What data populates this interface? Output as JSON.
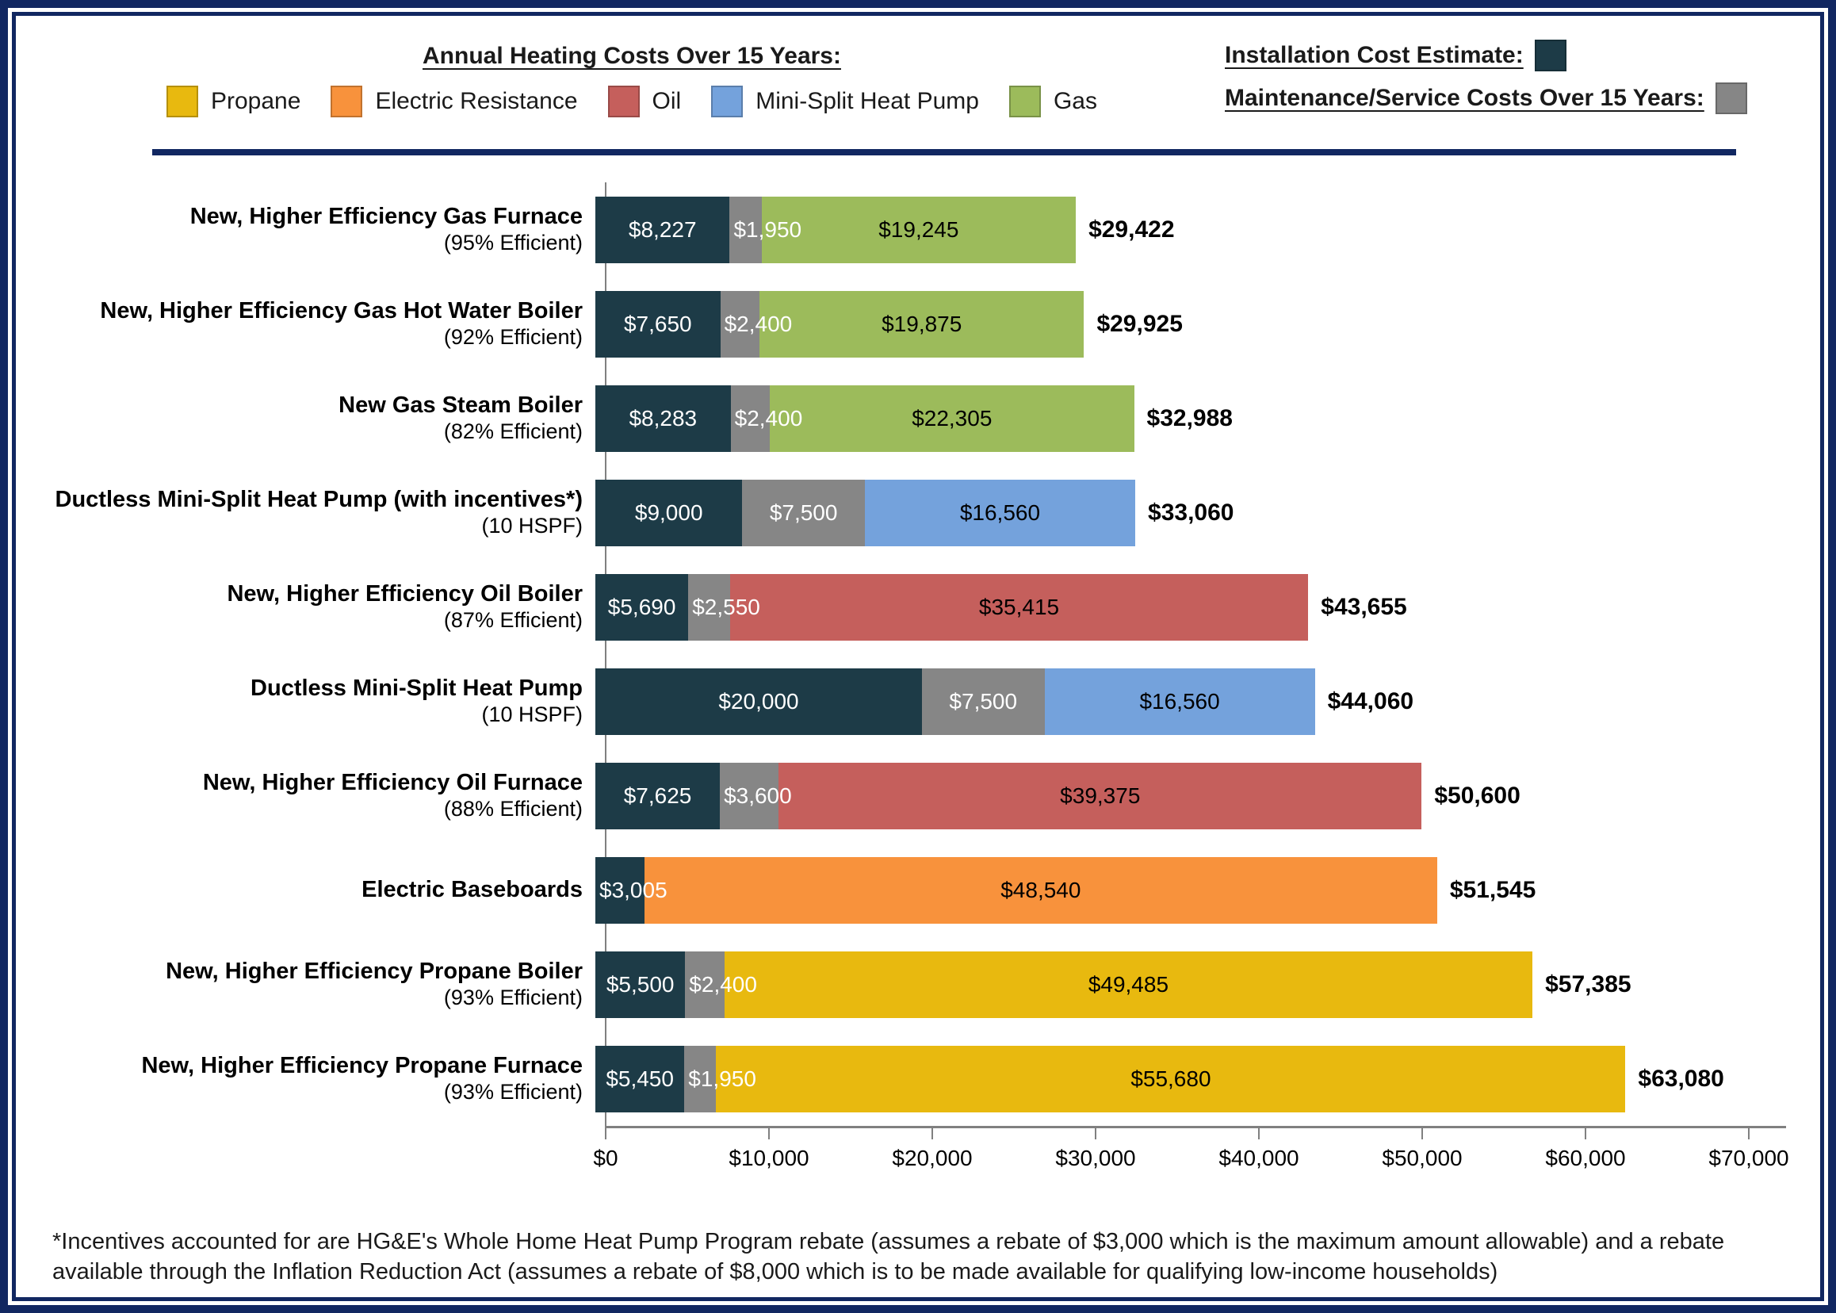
{
  "colors": {
    "frame": "#112761",
    "installation": "#1D3B47",
    "maintenance": "#868686",
    "propane": "#E8B90F",
    "electric": "#F8923C",
    "oil": "#C55F5C",
    "heatpump": "#74A2DC",
    "gas": "#9CBB5B",
    "axis": "#808080"
  },
  "legend": {
    "annual_title": "Annual Heating Costs Over 15 Years:",
    "fuels": [
      {
        "label": "Propane",
        "key": "propane"
      },
      {
        "label": "Electric Resistance",
        "key": "electric"
      },
      {
        "label": "Oil",
        "key": "oil"
      },
      {
        "label": "Mini-Split Heat Pump",
        "key": "heatpump"
      },
      {
        "label": "Gas",
        "key": "gas"
      }
    ],
    "installation_label": "Installation Cost Estimate:",
    "maintenance_label": "Maintenance/Service Costs Over 15 Years:"
  },
  "chart_data": {
    "type": "bar",
    "orientation": "horizontal",
    "stacked": true,
    "xlim": [
      0,
      70000
    ],
    "x_ticks": [
      "$0",
      "$10,000",
      "$20,000",
      "$30,000",
      "$40,000",
      "$50,000",
      "$60,000",
      "$70,000"
    ],
    "segments_order": [
      "installation",
      "maintenance",
      "fuel"
    ],
    "rows": [
      {
        "label": "New, Higher Efficiency Gas Furnace",
        "sublabel": "(95% Efficient)",
        "fuel_key": "gas",
        "installation": 8227,
        "maintenance": 1950,
        "fuel": 19245,
        "total": 29422,
        "display": {
          "installation": "$8,227",
          "maintenance": "$1,950",
          "fuel": "$19,245",
          "total": "$29,422"
        }
      },
      {
        "label": "New, Higher Efficiency Gas Hot Water Boiler",
        "sublabel": "(92% Efficient)",
        "fuel_key": "gas",
        "installation": 7650,
        "maintenance": 2400,
        "fuel": 19875,
        "total": 29925,
        "display": {
          "installation": "$7,650",
          "maintenance": "$2,400",
          "fuel": "$19,875",
          "total": "$29,925"
        }
      },
      {
        "label": "New Gas Steam Boiler",
        "sublabel": "(82% Efficient)",
        "fuel_key": "gas",
        "installation": 8283,
        "maintenance": 2400,
        "fuel": 22305,
        "total": 32988,
        "display": {
          "installation": "$8,283",
          "maintenance": "$2,400",
          "fuel": "$22,305",
          "total": "$32,988"
        }
      },
      {
        "label": "Ductless Mini-Split Heat Pump (with incentives*)",
        "sublabel": "(10 HSPF)",
        "fuel_key": "heatpump",
        "installation": 9000,
        "maintenance": 7500,
        "fuel": 16560,
        "total": 33060,
        "display": {
          "installation": "$9,000",
          "maintenance": "$7,500",
          "fuel": "$16,560",
          "total": "$33,060"
        }
      },
      {
        "label": "New, Higher Efficiency Oil Boiler",
        "sublabel": "(87% Efficient)",
        "fuel_key": "oil",
        "installation": 5690,
        "maintenance": 2550,
        "fuel": 35415,
        "total": 43655,
        "display": {
          "installation": "$5,690",
          "maintenance": "$2,550",
          "fuel": "$35,415",
          "total": "$43,655"
        }
      },
      {
        "label": "Ductless Mini-Split Heat Pump",
        "sublabel": "(10 HSPF)",
        "fuel_key": "heatpump",
        "installation": 20000,
        "maintenance": 7500,
        "fuel": 16560,
        "total": 44060,
        "display": {
          "installation": "$20,000",
          "maintenance": "$7,500",
          "fuel": "$16,560",
          "total": "$44,060"
        }
      },
      {
        "label": "New, Higher Efficiency Oil Furnace",
        "sublabel": "(88% Efficient)",
        "fuel_key": "oil",
        "installation": 7625,
        "maintenance": 3600,
        "fuel": 39375,
        "total": 50600,
        "display": {
          "installation": "$7,625",
          "maintenance": "$3,600",
          "fuel": "$39,375",
          "total": "$50,600"
        }
      },
      {
        "label": "Electric Baseboards",
        "sublabel": "",
        "fuel_key": "electric",
        "installation": 3005,
        "maintenance": 0,
        "fuel": 48540,
        "total": 51545,
        "display": {
          "installation": "$3,005",
          "maintenance": "",
          "fuel": "$48,540",
          "total": "$51,545"
        }
      },
      {
        "label": "New, Higher Efficiency Propane Boiler",
        "sublabel": "(93% Efficient)",
        "fuel_key": "propane",
        "installation": 5500,
        "maintenance": 2400,
        "fuel": 49485,
        "total": 57385,
        "display": {
          "installation": "$5,500",
          "maintenance": "$2,400",
          "fuel": "$49,485",
          "total": "$57,385"
        }
      },
      {
        "label": "New, Higher Efficiency Propane Furnace",
        "sublabel": "(93% Efficient)",
        "fuel_key": "propane",
        "installation": 5450,
        "maintenance": 1950,
        "fuel": 55680,
        "total": 63080,
        "display": {
          "installation": "$5,450",
          "maintenance": "$1,950",
          "fuel": "$55,680",
          "total": "$63,080"
        }
      }
    ]
  },
  "footnote": {
    "text": "*Incentives accounted for are HG&E's Whole Home Heat Pump Program rebate (assumes a rebate of $3,000 which is the maximum amount allowable) and a rebate available through the Inflation Reduction Act (assumes a rebate of $8,000 which is to be made available  for qualifying low-income households)"
  }
}
